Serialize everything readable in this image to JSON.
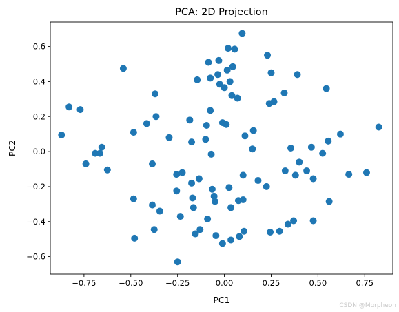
{
  "chart_data": {
    "type": "scatter",
    "title": "PCA: 2D Projection",
    "xlabel": "PC1",
    "ylabel": "PC2",
    "xlim": [
      -0.93,
      0.9
    ],
    "ylim": [
      -0.7,
      0.74
    ],
    "x_ticks": [
      -0.75,
      -0.5,
      -0.25,
      0.0,
      0.25,
      0.5,
      0.75
    ],
    "x_tick_labels": [
      "−0.75",
      "−0.50",
      "−0.25",
      "0.00",
      "0.25",
      "0.50",
      "0.75"
    ],
    "y_ticks": [
      -0.6,
      -0.4,
      -0.2,
      0.0,
      0.2,
      0.4,
      0.6
    ],
    "y_tick_labels": [
      "−0.6",
      "−0.4",
      "−0.2",
      "0.0",
      "0.2",
      "0.4",
      "0.6"
    ],
    "grid": false,
    "color": "#1f77b4",
    "points": [
      {
        "x": -0.87,
        "y": 0.095
      },
      {
        "x": -0.83,
        "y": 0.255
      },
      {
        "x": -0.77,
        "y": 0.24
      },
      {
        "x": -0.74,
        "y": -0.07
      },
      {
        "x": -0.69,
        "y": -0.01
      },
      {
        "x": -0.665,
        "y": -0.01
      },
      {
        "x": -0.655,
        "y": 0.025
      },
      {
        "x": -0.625,
        "y": -0.105
      },
      {
        "x": -0.54,
        "y": 0.475
      },
      {
        "x": -0.485,
        "y": 0.11
      },
      {
        "x": -0.485,
        "y": -0.27
      },
      {
        "x": -0.48,
        "y": -0.495
      },
      {
        "x": -0.415,
        "y": 0.16
      },
      {
        "x": -0.385,
        "y": -0.07
      },
      {
        "x": -0.385,
        "y": -0.305
      },
      {
        "x": -0.375,
        "y": -0.445
      },
      {
        "x": -0.37,
        "y": 0.33
      },
      {
        "x": -0.365,
        "y": 0.2
      },
      {
        "x": -0.345,
        "y": -0.34
      },
      {
        "x": -0.295,
        "y": 0.08
      },
      {
        "x": -0.255,
        "y": -0.13
      },
      {
        "x": -0.255,
        "y": -0.225
      },
      {
        "x": -0.25,
        "y": -0.63
      },
      {
        "x": -0.235,
        "y": -0.37
      },
      {
        "x": -0.225,
        "y": -0.12
      },
      {
        "x": -0.185,
        "y": 0.18
      },
      {
        "x": -0.175,
        "y": 0.055
      },
      {
        "x": -0.175,
        "y": -0.18
      },
      {
        "x": -0.17,
        "y": -0.265
      },
      {
        "x": -0.165,
        "y": -0.32
      },
      {
        "x": -0.155,
        "y": -0.47
      },
      {
        "x": -0.145,
        "y": 0.41
      },
      {
        "x": -0.135,
        "y": -0.155
      },
      {
        "x": -0.13,
        "y": -0.445
      },
      {
        "x": -0.1,
        "y": 0.07
      },
      {
        "x": -0.095,
        "y": 0.15
      },
      {
        "x": -0.09,
        "y": -0.385
      },
      {
        "x": -0.085,
        "y": 0.51
      },
      {
        "x": -0.075,
        "y": 0.235
      },
      {
        "x": -0.075,
        "y": 0.42
      },
      {
        "x": -0.07,
        "y": -0.015
      },
      {
        "x": -0.065,
        "y": -0.215
      },
      {
        "x": -0.055,
        "y": -0.255
      },
      {
        "x": -0.05,
        "y": -0.285
      },
      {
        "x": -0.045,
        "y": -0.48
      },
      {
        "x": -0.035,
        "y": 0.44
      },
      {
        "x": -0.03,
        "y": 0.52
      },
      {
        "x": -0.025,
        "y": 0.385
      },
      {
        "x": -0.01,
        "y": 0.165
      },
      {
        "x": -0.01,
        "y": -0.525
      },
      {
        "x": 0.0,
        "y": 0.365
      },
      {
        "x": 0.01,
        "y": 0.155
      },
      {
        "x": 0.015,
        "y": 0.465
      },
      {
        "x": 0.02,
        "y": 0.59
      },
      {
        "x": 0.025,
        "y": -0.205
      },
      {
        "x": 0.03,
        "y": 0.4
      },
      {
        "x": 0.035,
        "y": -0.32
      },
      {
        "x": 0.035,
        "y": -0.505
      },
      {
        "x": 0.04,
        "y": 0.32
      },
      {
        "x": 0.045,
        "y": 0.485
      },
      {
        "x": 0.055,
        "y": 0.585
      },
      {
        "x": 0.07,
        "y": 0.305
      },
      {
        "x": 0.075,
        "y": -0.28
      },
      {
        "x": 0.08,
        "y": -0.485
      },
      {
        "x": 0.095,
        "y": 0.675
      },
      {
        "x": 0.1,
        "y": -0.135
      },
      {
        "x": 0.1,
        "y": -0.275
      },
      {
        "x": 0.105,
        "y": -0.455
      },
      {
        "x": 0.11,
        "y": 0.09
      },
      {
        "x": 0.15,
        "y": 0.015
      },
      {
        "x": 0.155,
        "y": 0.12
      },
      {
        "x": 0.18,
        "y": -0.165
      },
      {
        "x": 0.225,
        "y": -0.2
      },
      {
        "x": 0.23,
        "y": 0.55
      },
      {
        "x": 0.24,
        "y": 0.275
      },
      {
        "x": 0.245,
        "y": -0.46
      },
      {
        "x": 0.25,
        "y": 0.45
      },
      {
        "x": 0.265,
        "y": 0.285
      },
      {
        "x": 0.295,
        "y": -0.455
      },
      {
        "x": 0.32,
        "y": 0.335
      },
      {
        "x": 0.325,
        "y": -0.11
      },
      {
        "x": 0.34,
        "y": -0.415
      },
      {
        "x": 0.355,
        "y": 0.02
      },
      {
        "x": 0.37,
        "y": -0.395
      },
      {
        "x": 0.38,
        "y": -0.135
      },
      {
        "x": 0.39,
        "y": 0.44
      },
      {
        "x": 0.4,
        "y": -0.06
      },
      {
        "x": 0.44,
        "y": -0.11
      },
      {
        "x": 0.465,
        "y": 0.025
      },
      {
        "x": 0.475,
        "y": -0.155
      },
      {
        "x": 0.475,
        "y": -0.395
      },
      {
        "x": 0.525,
        "y": -0.01
      },
      {
        "x": 0.545,
        "y": 0.36
      },
      {
        "x": 0.555,
        "y": 0.06
      },
      {
        "x": 0.56,
        "y": -0.285
      },
      {
        "x": 0.62,
        "y": 0.1
      },
      {
        "x": 0.665,
        "y": -0.13
      },
      {
        "x": 0.76,
        "y": -0.12
      },
      {
        "x": 0.825,
        "y": 0.14
      }
    ]
  },
  "watermark": "CSDN @Morpheon"
}
